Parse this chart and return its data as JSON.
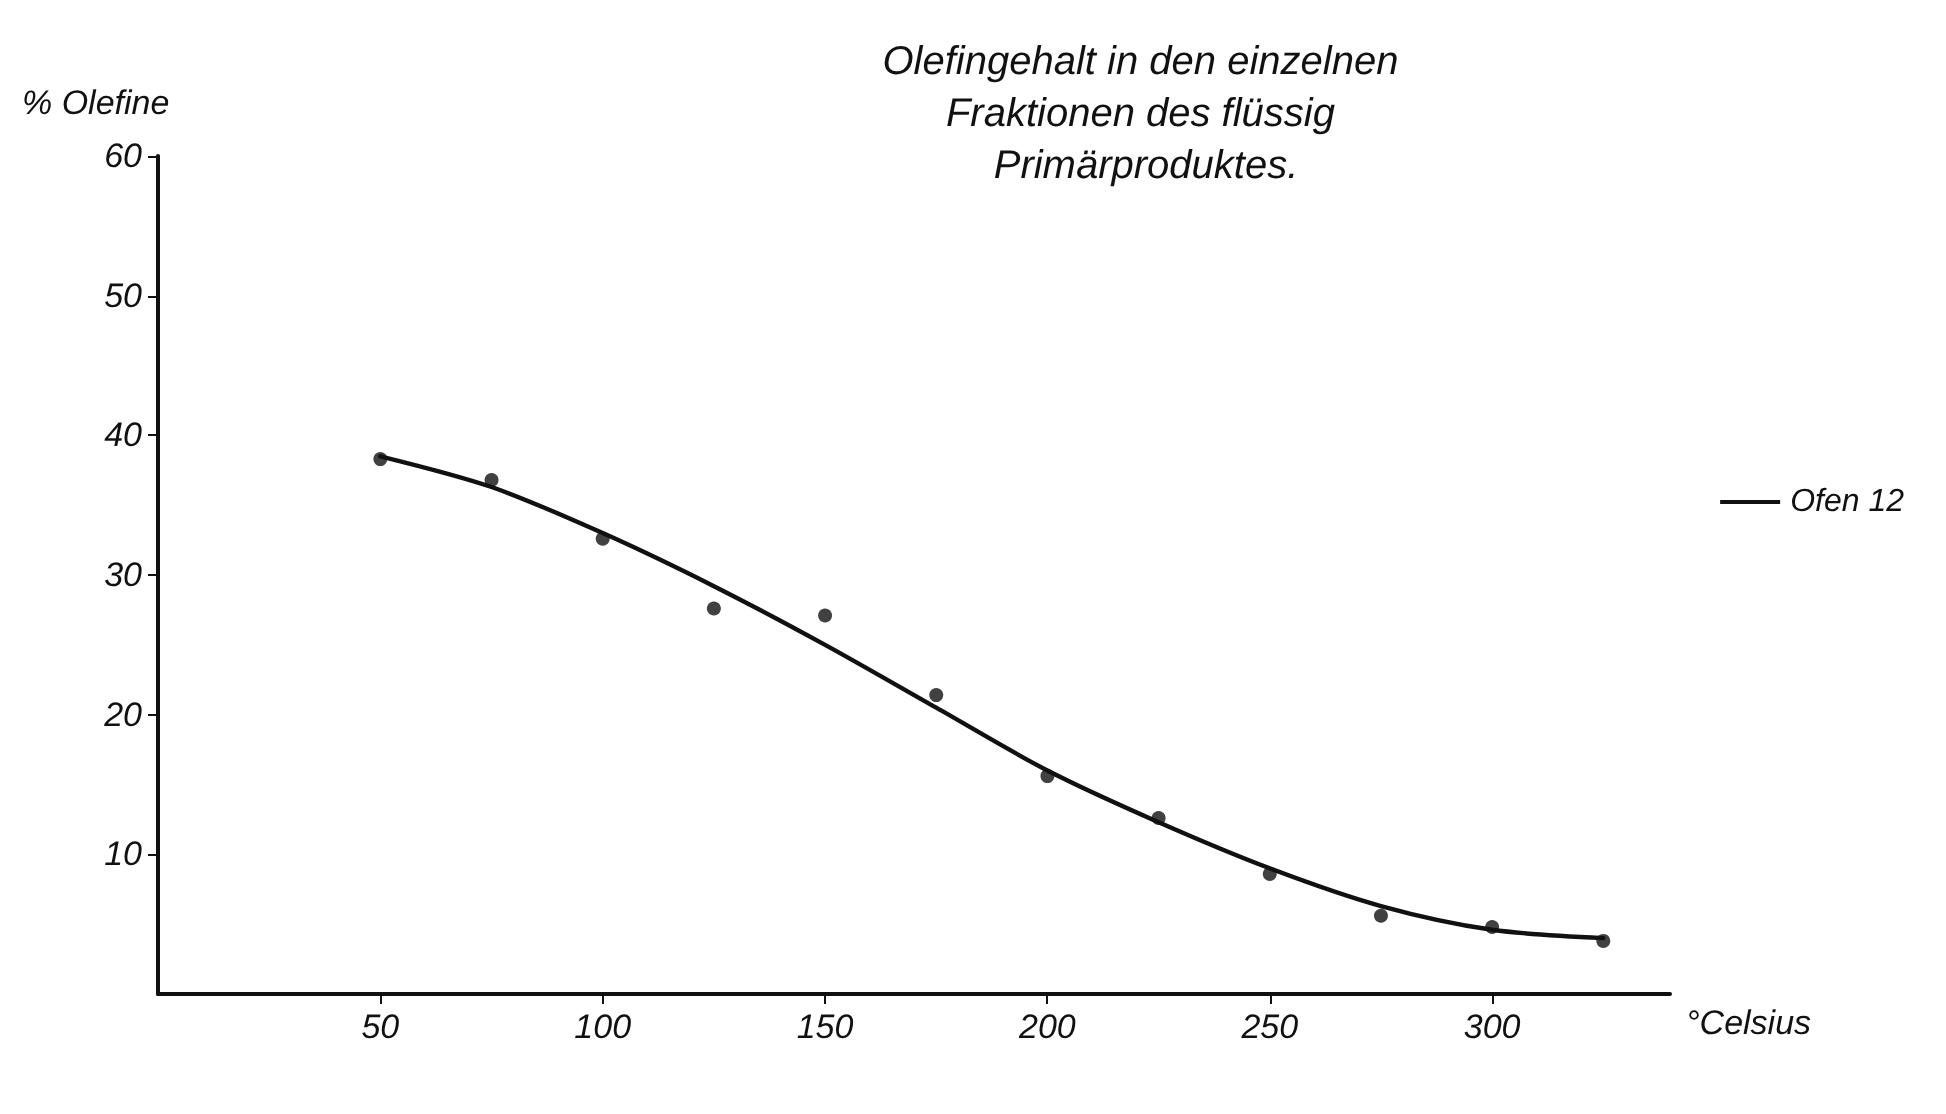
{
  "chart_data": {
    "type": "scatter",
    "title": "Olefingehalt in den einzelnen Fraktionen des flüssig Primärproduktes.",
    "xlabel": "°Celsius",
    "ylabel": "% Olefine",
    "series": [
      {
        "color": "#111111",
        "marker": "circle",
        "x": [
          50,
          75,
          100,
          125,
          150,
          175,
          200,
          225,
          250,
          275,
          300,
          325
        ],
        "values": [
          38.3,
          36.8,
          32.6,
          27.6,
          27.1,
          21.4,
          15.6,
          12.6,
          8.6,
          5.6,
          4.8,
          3.8
        ]
      },
      {
        "type": "line",
        "name": "Ofen 12",
        "color": "#111111",
        "marker": "none",
        "line_style": "solid",
        "x": [
          50,
          75,
          100,
          125,
          150,
          175,
          200,
          225,
          250,
          275,
          300,
          325
        ],
        "values": [
          38.5,
          36.3,
          33,
          29.2,
          25,
          20.5,
          16,
          12.3,
          9,
          6.3,
          4.6,
          4
        ]
      }
    ],
    "xlim": [
      0,
      340
    ],
    "xticks": [
      50,
      100,
      150,
      200,
      250,
      300
    ],
    "ylim": [
      0,
      60
    ],
    "yticks": [
      10,
      20,
      30,
      40,
      50,
      60
    ],
    "grid": false,
    "legend": "right"
  }
}
